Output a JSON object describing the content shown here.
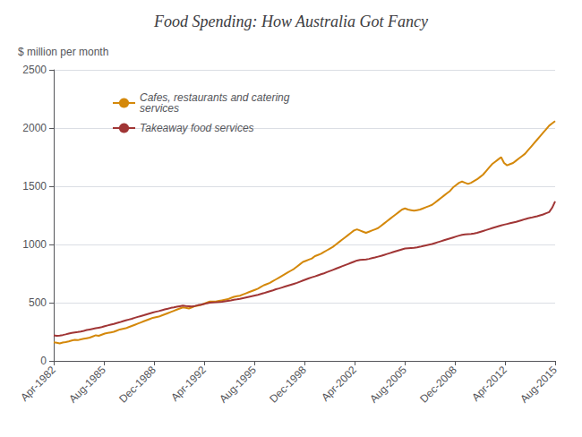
{
  "chart_data": {
    "type": "line",
    "title": "Food Spending: How Australia Got Fancy",
    "ylabel": "$ million per month",
    "x": [
      0,
      1,
      2,
      3,
      4,
      5,
      6,
      7,
      8,
      9,
      10,
      11,
      12,
      13,
      14,
      15,
      16,
      17,
      18,
      19,
      20,
      21,
      22,
      23,
      24,
      25,
      26,
      27,
      28,
      29,
      30,
      31,
      32,
      33,
      34,
      35,
      36,
      37,
      38,
      39,
      40,
      41,
      42,
      43,
      44,
      45,
      46,
      47,
      48,
      49,
      50,
      51,
      52,
      53,
      54,
      55,
      56,
      57,
      58,
      59,
      60,
      61,
      62,
      63,
      64,
      65,
      66,
      67,
      68,
      69,
      70,
      71,
      72,
      73,
      74,
      75,
      76,
      77,
      78,
      79,
      80,
      81,
      82,
      83,
      84,
      85,
      86,
      87,
      88,
      89,
      90,
      91,
      92,
      93,
      94,
      95,
      96,
      97,
      98,
      99,
      100,
      101,
      102,
      103,
      104,
      105,
      106,
      107,
      108,
      109,
      110,
      111,
      112,
      113,
      114,
      115,
      116,
      117,
      118,
      119,
      120,
      121,
      122,
      123,
      124,
      125,
      126,
      127,
      128,
      129,
      130,
      131,
      132,
      133,
      134,
      135,
      136,
      137,
      138,
      139,
      140,
      141,
      142,
      143,
      144,
      145,
      146,
      147,
      148,
      149,
      150,
      151,
      152,
      153,
      154,
      155,
      156,
      157,
      158,
      159,
      160,
      161,
      162,
      163,
      164,
      165,
      166,
      167
    ],
    "xlim": [
      0,
      167
    ],
    "xticks": [
      {
        "value": 0,
        "label": "Apr-1982"
      },
      {
        "value": 16.7,
        "label": "Aug-1985"
      },
      {
        "value": 33.4,
        "label": "Dec-1988"
      },
      {
        "value": 50.1,
        "label": "Apr-1992"
      },
      {
        "value": 66.8,
        "label": "Aug-1995"
      },
      {
        "value": 83.5,
        "label": "Dec-1998"
      },
      {
        "value": 100.2,
        "label": "Apr-2002"
      },
      {
        "value": 116.9,
        "label": "Aug-2005"
      },
      {
        "value": 133.6,
        "label": "Dec-2008"
      },
      {
        "value": 150.3,
        "label": "Apr-2012"
      },
      {
        "value": 167,
        "label": "Aug-2015"
      }
    ],
    "ylim": [
      0,
      2500
    ],
    "yticks": [
      0,
      500,
      1000,
      1500,
      2000,
      2500
    ],
    "grid": true,
    "legend": "upper left",
    "series": [
      {
        "name": "Cafes, restaurants and catering\nservices",
        "color": "#D4880A",
        "values": [
          160,
          155,
          150,
          158,
          162,
          168,
          175,
          180,
          178,
          185,
          190,
          195,
          200,
          210,
          220,
          215,
          225,
          235,
          240,
          245,
          250,
          260,
          270,
          275,
          280,
          290,
          300,
          310,
          320,
          330,
          340,
          350,
          360,
          370,
          375,
          380,
          390,
          400,
          410,
          420,
          430,
          440,
          450,
          460,
          455,
          450,
          460,
          470,
          475,
          480,
          490,
          500,
          510,
          510,
          510,
          515,
          520,
          525,
          530,
          540,
          550,
          555,
          560,
          570,
          580,
          590,
          600,
          610,
          620,
          635,
          650,
          660,
          670,
          685,
          700,
          715,
          730,
          745,
          760,
          775,
          790,
          810,
          830,
          850,
          860,
          870,
          880,
          900,
          910,
          920,
          935,
          950,
          965,
          980,
          1000,
          1020,
          1040,
          1060,
          1080,
          1100,
          1120,
          1130,
          1120,
          1110,
          1100,
          1110,
          1120,
          1130,
          1140,
          1160,
          1180,
          1200,
          1220,
          1240,
          1260,
          1280,
          1300,
          1310,
          1300,
          1295,
          1290,
          1295,
          1300,
          1310,
          1320,
          1330,
          1340,
          1360,
          1380,
          1400,
          1420,
          1440,
          1460,
          1490,
          1510,
          1530,
          1540,
          1530,
          1520,
          1530,
          1545,
          1560,
          1580,
          1600,
          1630,
          1660,
          1690,
          1710,
          1730,
          1750,
          1700,
          1680,
          1690,
          1700,
          1720,
          1740,
          1760,
          1780,
          1810,
          1840,
          1870,
          1900,
          1930,
          1960,
          1990,
          2020,
          2040,
          2060
        ]
      },
      {
        "name": "Takeaway food services",
        "color": "#A03535",
        "values": [
          220,
          215,
          218,
          222,
          228,
          235,
          240,
          245,
          248,
          252,
          258,
          265,
          270,
          275,
          280,
          285,
          290,
          298,
          305,
          312,
          318,
          325,
          332,
          340,
          348,
          355,
          362,
          370,
          378,
          385,
          392,
          400,
          408,
          415,
          422,
          428,
          435,
          442,
          448,
          455,
          460,
          465,
          470,
          475,
          472,
          470,
          468,
          472,
          478,
          482,
          488,
          495,
          500,
          502,
          503,
          505,
          508,
          512,
          516,
          520,
          525,
          528,
          532,
          538,
          544,
          550,
          556,
          562,
          568,
          575,
          582,
          590,
          598,
          606,
          615,
          622,
          630,
          638,
          646,
          654,
          662,
          670,
          680,
          690,
          700,
          710,
          718,
          726,
          735,
          744,
          752,
          762,
          772,
          782,
          792,
          802,
          812,
          822,
          832,
          842,
          852,
          862,
          868,
          870,
          872,
          876,
          882,
          888,
          895,
          902,
          910,
          918,
          926,
          934,
          942,
          950,
          958,
          966,
          968,
          970,
          972,
          975,
          980,
          986,
          992,
          998,
          1004,
          1012,
          1020,
          1028,
          1036,
          1044,
          1052,
          1060,
          1068,
          1076,
          1082,
          1086,
          1088,
          1090,
          1094,
          1100,
          1108,
          1116,
          1124,
          1132,
          1140,
          1148,
          1156,
          1164,
          1170,
          1176,
          1182,
          1188,
          1194,
          1202,
          1210,
          1218,
          1225,
          1230,
          1236,
          1242,
          1250,
          1258,
          1268,
          1278,
          1315,
          1370
        ]
      }
    ]
  }
}
